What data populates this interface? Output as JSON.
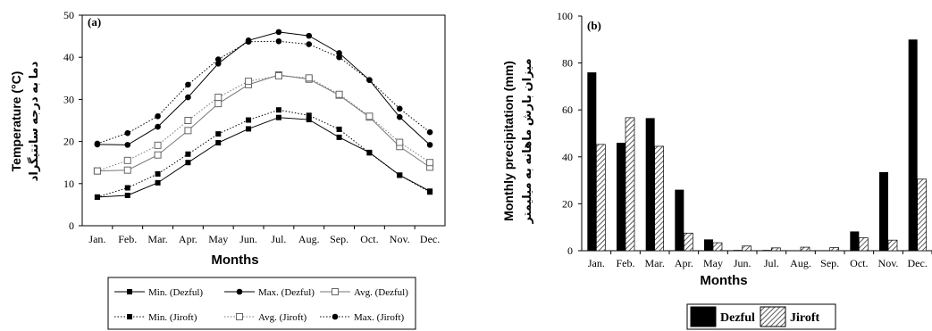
{
  "chart_data": [
    {
      "type": "line",
      "panel_label": "(a)",
      "xlabel": "Months",
      "ylabel": "Temperature (°C)",
      "ylabel_fa": "دما به درجه سانتیگراد",
      "categories": [
        "Jan.",
        "Feb.",
        "Mar.",
        "Apr.",
        "May",
        "Jun.",
        "Jul.",
        "Aug.",
        "Sep.",
        "Oct.",
        "Nov.",
        "Dec."
      ],
      "ylim": [
        0,
        50
      ],
      "yticks": [
        "0",
        "10",
        "20",
        "30",
        "40",
        "50"
      ],
      "grid": false,
      "legend_position": "bottom",
      "series": [
        {
          "name": "Min. (Dezful)",
          "line": "solid",
          "marker": "square-filled",
          "values": [
            6.8,
            7.2,
            10.2,
            15,
            19.7,
            23,
            25.7,
            25.2,
            21,
            17.4,
            12,
            8.2
          ]
        },
        {
          "name": "Max. (Dezful)",
          "line": "solid",
          "marker": "circle-filled",
          "values": [
            19.3,
            19.2,
            23.5,
            30.5,
            38.5,
            44,
            46,
            45.1,
            41,
            34.6,
            25.8,
            19.2
          ]
        },
        {
          "name": "Avg. (Dezful)",
          "line": "solid",
          "marker": "square-open",
          "values": [
            13,
            13.2,
            16.8,
            22.6,
            29,
            33.5,
            35.8,
            34.8,
            31,
            25.8,
            18.8,
            13.9
          ]
        },
        {
          "name": "Min. (Jiroft)",
          "line": "dotted",
          "marker": "square-filled",
          "values": [
            6.8,
            9,
            12.3,
            17,
            21.8,
            25.1,
            27.5,
            26.2,
            22.9,
            17.3,
            12,
            8
          ]
        },
        {
          "name": "Avg. (Jiroft)",
          "line": "dotted",
          "marker": "square-open",
          "values": [
            13,
            15.5,
            19.1,
            25,
            30.5,
            34.3,
            35.6,
            35.1,
            31.2,
            26,
            19.8,
            15
          ]
        },
        {
          "name": "Max. (Jiroft)",
          "line": "dotted",
          "marker": "circle-filled",
          "values": [
            19.5,
            22,
            26,
            33.5,
            39.5,
            43.7,
            43.8,
            43.1,
            40,
            34.6,
            27.8,
            22.2
          ]
        }
      ],
      "legend_order": [
        "Min. (Dezful)",
        "Max. (Dezful)",
        "Avg. (Dezful)",
        "Min. (Jiroft)",
        "Avg. (Jiroft)",
        "Max. (Jiroft)"
      ]
    },
    {
      "type": "bar",
      "panel_label": "(b)",
      "xlabel": "Months",
      "ylabel": "Monthly precipitation (mm)",
      "ylabel_fa": "میزان بارش ماهانه به میلیمتر",
      "categories": [
        "Jan.",
        "Feb.",
        "Mar.",
        "Apr.",
        "May",
        "Jun.",
        "Jul.",
        "Aug.",
        "Sep.",
        "Oct.",
        "Nov.",
        "Dec."
      ],
      "ylim": [
        0,
        100
      ],
      "yticks": [
        "0",
        "20",
        "40",
        "60",
        "80",
        "100"
      ],
      "grid": false,
      "legend_position": "bottom",
      "series": [
        {
          "name": "Dezful",
          "fill": "solid",
          "values": [
            76,
            46,
            56.5,
            26,
            4.8,
            0.3,
            0.3,
            0,
            0.2,
            8.2,
            33.5,
            90
          ]
        },
        {
          "name": "Jiroft",
          "fill": "hatched",
          "values": [
            45.3,
            56.7,
            44.5,
            7.5,
            3.4,
            2,
            1.2,
            1.5,
            1.3,
            5.5,
            4.5,
            30.5
          ]
        }
      ]
    }
  ]
}
